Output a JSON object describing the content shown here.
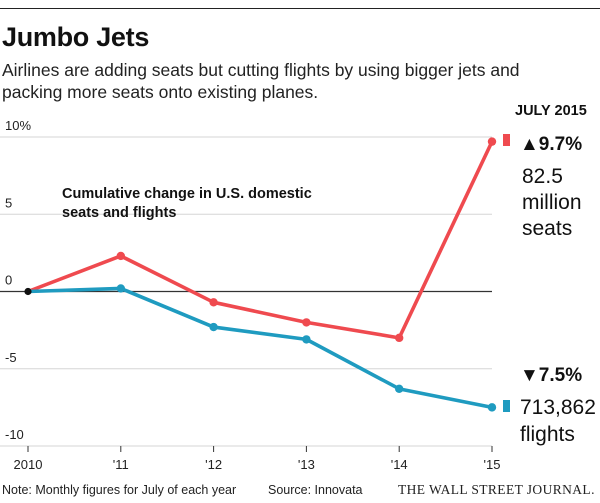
{
  "header": {
    "title": "Jumbo Jets",
    "subtitle": "Airlines are adding seats but cutting flights by using bigger jets and packing more seats onto existing planes."
  },
  "footer": {
    "note": "Note: Monthly figures for July of each year",
    "source": "Source: Innovata",
    "publication": "THE WALL STREET JOURNAL."
  },
  "colors": {
    "seats": "#ef4a4f",
    "flights": "#1f9bc0",
    "grid": "#d6d6d6",
    "zero": "#333333"
  },
  "annotations": {
    "chart_label_line1": "Cumulative change in U.S. domestic",
    "chart_label_line2": "seats and flights",
    "date_label": "JULY 2015",
    "seats_change": "▲9.7%",
    "seats_count_line1": "82.5",
    "seats_count_line2": "million",
    "seats_count_line3": "seats",
    "flights_change": "▼7.5%",
    "flights_count_line1": "713,862",
    "flights_count_line2": "flights"
  },
  "chart_data": {
    "type": "line",
    "title": "Cumulative change in U.S. domestic seats and flights",
    "xlabel": "",
    "ylabel": "",
    "categories": [
      "2010",
      "'11",
      "'12",
      "'13",
      "'14",
      "'15"
    ],
    "ylim": [
      -10,
      10
    ],
    "yticks": [
      {
        "value": 10,
        "label": "10%"
      },
      {
        "value": 5,
        "label": "5"
      },
      {
        "value": 0,
        "label": "0"
      },
      {
        "value": -5,
        "label": "-5"
      },
      {
        "value": -10,
        "label": "-10"
      }
    ],
    "grid": true,
    "series": [
      {
        "name": "Seats",
        "values": [
          0,
          2.3,
          -0.7,
          -2.0,
          -3.0,
          9.7
        ]
      },
      {
        "name": "Flights",
        "values": [
          0,
          0.2,
          -2.3,
          -3.1,
          -6.3,
          -7.5
        ]
      }
    ]
  }
}
